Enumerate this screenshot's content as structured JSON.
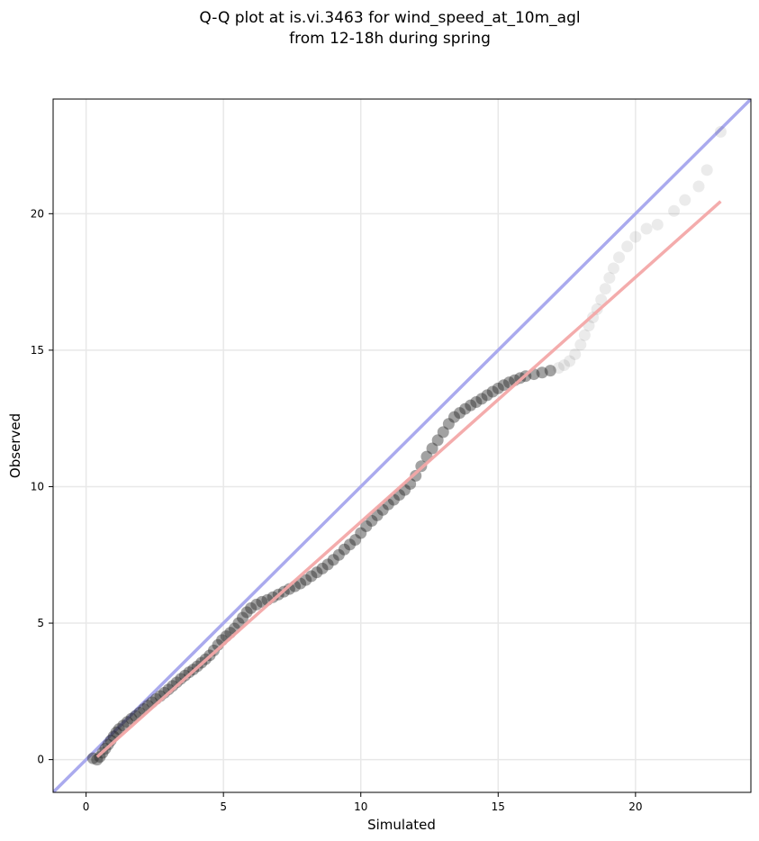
{
  "chart_data": {
    "type": "scatter",
    "title_line1": "Q-Q plot at is.vi.3463 for wind_speed_at_10m_agl",
    "title_line2": "from 12-18h during spring",
    "xlabel": "Simulated",
    "ylabel": "Observed",
    "xlim": [
      -1.2,
      24.2
    ],
    "ylim": [
      -1.2,
      24.2
    ],
    "x_ticks": [
      0,
      5,
      10,
      15,
      20
    ],
    "y_ticks": [
      0,
      5,
      10,
      15,
      20
    ],
    "grid": true,
    "colors": {
      "points": "#222222",
      "identity_line": "#aaaaee",
      "fit_line": "#f4a8a8",
      "grid": "#e8e8e8"
    },
    "identity_line": {
      "x": [
        -1.2,
        24.2
      ],
      "y": [
        -1.2,
        24.2
      ]
    },
    "fit_line": {
      "x": [
        0.4,
        23.1
      ],
      "y": [
        0.1,
        20.45
      ]
    },
    "points": [
      [
        0.25,
        0.05
      ],
      [
        0.4,
        0.0
      ],
      [
        0.5,
        0.1
      ],
      [
        0.6,
        0.25
      ],
      [
        0.7,
        0.4
      ],
      [
        0.8,
        0.55
      ],
      [
        0.9,
        0.7
      ],
      [
        1.0,
        0.85
      ],
      [
        1.1,
        1.0
      ],
      [
        1.2,
        1.12
      ],
      [
        1.35,
        1.25
      ],
      [
        1.5,
        1.38
      ],
      [
        1.65,
        1.5
      ],
      [
        1.8,
        1.6
      ],
      [
        1.95,
        1.72
      ],
      [
        2.1,
        1.85
      ],
      [
        2.25,
        1.98
      ],
      [
        2.4,
        2.1
      ],
      [
        2.55,
        2.22
      ],
      [
        2.7,
        2.33
      ],
      [
        2.85,
        2.45
      ],
      [
        3.0,
        2.57
      ],
      [
        3.15,
        2.7
      ],
      [
        3.3,
        2.83
      ],
      [
        3.45,
        2.96
      ],
      [
        3.6,
        3.08
      ],
      [
        3.75,
        3.2
      ],
      [
        3.9,
        3.3
      ],
      [
        4.05,
        3.42
      ],
      [
        4.2,
        3.55
      ],
      [
        4.35,
        3.68
      ],
      [
        4.5,
        3.82
      ],
      [
        4.65,
        4.0
      ],
      [
        4.8,
        4.2
      ],
      [
        4.95,
        4.38
      ],
      [
        5.1,
        4.52
      ],
      [
        5.25,
        4.65
      ],
      [
        5.4,
        4.8
      ],
      [
        5.55,
        5.0
      ],
      [
        5.7,
        5.2
      ],
      [
        5.85,
        5.4
      ],
      [
        6.0,
        5.55
      ],
      [
        6.2,
        5.68
      ],
      [
        6.4,
        5.78
      ],
      [
        6.6,
        5.85
      ],
      [
        6.8,
        5.95
      ],
      [
        7.0,
        6.05
      ],
      [
        7.2,
        6.15
      ],
      [
        7.4,
        6.25
      ],
      [
        7.6,
        6.35
      ],
      [
        7.8,
        6.45
      ],
      [
        8.0,
        6.58
      ],
      [
        8.2,
        6.72
      ],
      [
        8.4,
        6.86
      ],
      [
        8.6,
        7.0
      ],
      [
        8.8,
        7.15
      ],
      [
        9.0,
        7.32
      ],
      [
        9.2,
        7.5
      ],
      [
        9.4,
        7.7
      ],
      [
        9.6,
        7.88
      ],
      [
        9.8,
        8.05
      ],
      [
        10.0,
        8.3
      ],
      [
        10.2,
        8.55
      ],
      [
        10.4,
        8.75
      ],
      [
        10.6,
        8.95
      ],
      [
        10.8,
        9.15
      ],
      [
        11.0,
        9.35
      ],
      [
        11.2,
        9.52
      ],
      [
        11.4,
        9.7
      ],
      [
        11.6,
        9.88
      ],
      [
        11.8,
        10.1
      ],
      [
        12.0,
        10.4
      ],
      [
        12.2,
        10.75
      ],
      [
        12.4,
        11.1
      ],
      [
        12.6,
        11.4
      ],
      [
        12.8,
        11.7
      ],
      [
        13.0,
        12.0
      ],
      [
        13.2,
        12.3
      ],
      [
        13.4,
        12.55
      ],
      [
        13.6,
        12.7
      ],
      [
        13.8,
        12.85
      ],
      [
        14.0,
        12.98
      ],
      [
        14.2,
        13.1
      ],
      [
        14.4,
        13.22
      ],
      [
        14.6,
        13.35
      ],
      [
        14.8,
        13.48
      ],
      [
        15.0,
        13.6
      ],
      [
        15.2,
        13.72
      ],
      [
        15.4,
        13.82
      ],
      [
        15.6,
        13.9
      ],
      [
        15.8,
        13.98
      ],
      [
        16.0,
        14.05
      ],
      [
        16.3,
        14.12
      ],
      [
        16.6,
        14.18
      ],
      [
        16.9,
        14.25
      ],
      [
        17.2,
        14.35
      ],
      [
        17.4,
        14.45
      ],
      [
        17.6,
        14.6
      ],
      [
        17.8,
        14.85
      ],
      [
        18.0,
        15.2
      ],
      [
        18.15,
        15.55
      ],
      [
        18.3,
        15.9
      ],
      [
        18.45,
        16.2
      ],
      [
        18.6,
        16.5
      ],
      [
        18.75,
        16.85
      ],
      [
        18.9,
        17.25
      ],
      [
        19.05,
        17.65
      ],
      [
        19.2,
        18.0
      ],
      [
        19.4,
        18.4
      ],
      [
        19.7,
        18.8
      ],
      [
        20.0,
        19.15
      ],
      [
        20.4,
        19.45
      ],
      [
        20.8,
        19.6
      ],
      [
        21.4,
        20.1
      ],
      [
        21.8,
        20.5
      ],
      [
        22.3,
        21.0
      ],
      [
        22.6,
        21.6
      ],
      [
        23.1,
        23.0
      ]
    ]
  }
}
